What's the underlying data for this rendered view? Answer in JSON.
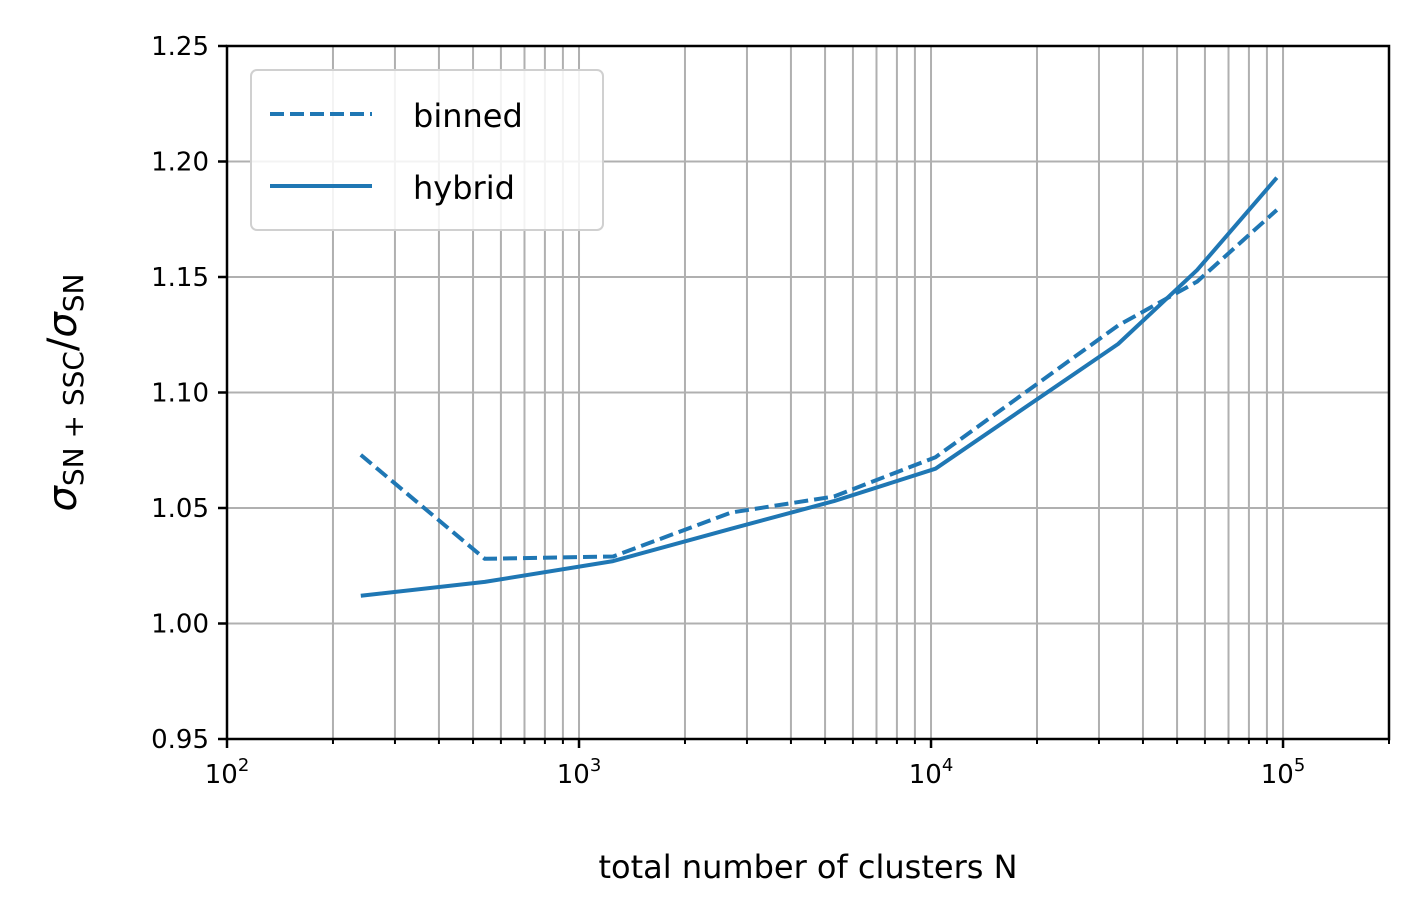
{
  "chart_data": {
    "type": "line",
    "title": "",
    "xlabel": "total number of clusters N",
    "ylabel": {
      "num_symbol": "σ",
      "num_sub": "SN + SSC",
      "slash": "/",
      "den_symbol": "σ",
      "den_sub": "SN"
    },
    "x_scale": "log",
    "xlim": [
      100,
      200000
    ],
    "ylim": [
      0.95,
      1.25
    ],
    "grid": true,
    "legend_position": "top-left",
    "x_ticks": [
      {
        "value": 100,
        "base": "10",
        "exp": "2"
      },
      {
        "value": 1000,
        "base": "10",
        "exp": "3"
      },
      {
        "value": 10000,
        "base": "10",
        "exp": "4"
      },
      {
        "value": 100000,
        "base": "10",
        "exp": "5"
      }
    ],
    "y_ticks": [
      {
        "value": 0.95,
        "label": "0.95"
      },
      {
        "value": 1.0,
        "label": "1.00"
      },
      {
        "value": 1.05,
        "label": "1.05"
      },
      {
        "value": 1.1,
        "label": "1.10"
      },
      {
        "value": 1.15,
        "label": "1.15"
      },
      {
        "value": 1.2,
        "label": "1.20"
      },
      {
        "value": 1.25,
        "label": "1.25"
      }
    ],
    "series": [
      {
        "name": "binned",
        "style": "dashed",
        "color": "#1f77b4",
        "x": [
          240,
          540,
          1250,
          2700,
          5300,
          10300,
          34000,
          57000,
          96000
        ],
        "y": [
          1.073,
          1.028,
          1.029,
          1.048,
          1.055,
          1.072,
          1.129,
          1.148,
          1.179
        ]
      },
      {
        "name": "hybrid",
        "style": "solid",
        "color": "#1f77b4",
        "x": [
          240,
          540,
          1250,
          2700,
          5300,
          10300,
          34000,
          57000,
          96000
        ],
        "y": [
          1.012,
          1.018,
          1.027,
          1.041,
          1.053,
          1.067,
          1.121,
          1.153,
          1.193
        ]
      }
    ]
  }
}
